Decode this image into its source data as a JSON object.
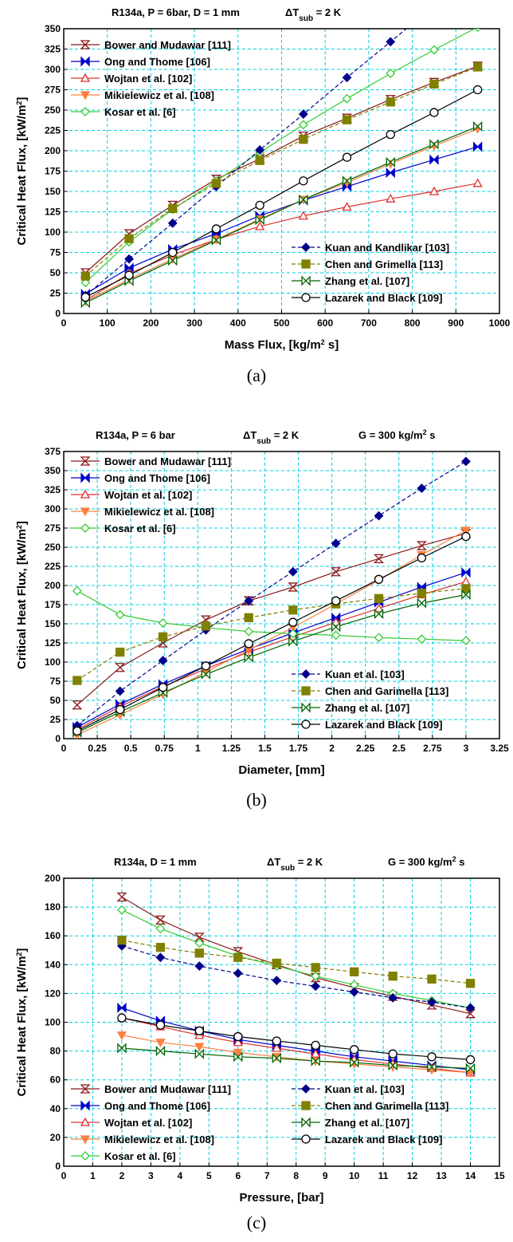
{
  "chart_data": [
    {
      "type": "line",
      "panel_caption": "(a)",
      "header": [
        "R134a, P = 6bar, D = 1 mm",
        "ΔT_sub = 2 K"
      ],
      "xlabel": "Mass Flux, [kg/m² s]",
      "ylabel": "Critical Heat Flux, [kW/m²]",
      "xlim": [
        0,
        1000
      ],
      "ylim": [
        0,
        350
      ],
      "xticks": [
        0,
        100,
        200,
        300,
        400,
        500,
        600,
        700,
        800,
        900,
        1000
      ],
      "yticks": [
        0,
        25,
        50,
        75,
        100,
        125,
        150,
        175,
        200,
        225,
        250,
        275,
        300,
        325,
        350
      ],
      "grid": true,
      "legend": [
        "top-left",
        "bottom-right"
      ],
      "series": [
        {
          "name": "Bower and Mudawar [111]",
          "color": "#8B1A1A",
          "marker": "hourglass",
          "dashed": false,
          "legend_group": 0,
          "x": [
            50,
            150,
            250,
            350,
            450,
            550,
            650,
            750,
            850,
            950
          ],
          "y": [
            50,
            98,
            133,
            165,
            190,
            218,
            240,
            263,
            284,
            304
          ]
        },
        {
          "name": "Ong and Thome [106]",
          "color": "#0000CC",
          "marker": "bowtie",
          "dashed": false,
          "legend_group": 0,
          "x": [
            50,
            150,
            250,
            350,
            450,
            550,
            650,
            750,
            850,
            950
          ],
          "y": [
            24,
            56,
            79,
            98,
            120,
            139,
            156,
            173,
            189,
            205
          ]
        },
        {
          "name": "Wojtan et al. [102]",
          "color": "#E03030",
          "marker": "triangle",
          "dashed": false,
          "legend_group": 0,
          "x": [
            50,
            150,
            250,
            350,
            450,
            550,
            650,
            750,
            850,
            950
          ],
          "y": [
            16,
            49,
            72,
            91,
            107,
            120,
            131,
            141,
            150,
            160
          ]
        },
        {
          "name": "Mikielewicz et al. [108]",
          "color": "#FF8040",
          "marker": "triangle-down",
          "dashed": false,
          "legend_group": 0,
          "x": [
            50,
            150,
            250,
            350,
            450,
            550,
            650,
            750,
            850,
            950
          ],
          "y": [
            15,
            42,
            67,
            91,
            116,
            140,
            161,
            184,
            206,
            227
          ]
        },
        {
          "name": "Kosar et al. [6]",
          "color": "#33CC33",
          "marker": "diamond",
          "dashed": false,
          "legend_group": 0,
          "x": [
            50,
            150,
            250,
            350,
            450,
            550,
            650,
            750,
            850,
            950
          ],
          "y": [
            38,
            88,
            128,
            163,
            198,
            232,
            264,
            295,
            324,
            352
          ]
        },
        {
          "name": "Kuan and Kandlikar [103]",
          "color": "#00008B",
          "marker": "diamond-filled",
          "dashed": true,
          "legend_group": 1,
          "x": [
            50,
            150,
            250,
            350,
            450,
            550,
            650,
            750
          ],
          "y": [
            22,
            67,
            111,
            156,
            201,
            245,
            290,
            334
          ]
        },
        {
          "name": "Chen and Grimella [113]",
          "color": "#808000",
          "marker": "square",
          "dashed": true,
          "legend_group": 1,
          "x": [
            50,
            150,
            250,
            350,
            450,
            550,
            650,
            750,
            850,
            950
          ],
          "y": [
            46,
            92,
            129,
            160,
            188,
            214,
            238,
            260,
            282,
            303
          ]
        },
        {
          "name": "Zhang et al. [107]",
          "color": "#006400",
          "marker": "bowtie-open",
          "dashed": false,
          "legend_group": 1,
          "x": [
            50,
            150,
            250,
            350,
            450,
            550,
            650,
            750,
            850,
            950
          ],
          "y": [
            13,
            40,
            65,
            90,
            115,
            140,
            163,
            186,
            208,
            230
          ]
        },
        {
          "name": "Lazarek and Black [109]",
          "color": "#000000",
          "marker": "circle",
          "dashed": false,
          "legend_group": 1,
          "x": [
            50,
            150,
            250,
            350,
            450,
            550,
            650,
            750,
            850,
            950
          ],
          "y": [
            20,
            47,
            75,
            104,
            133,
            163,
            192,
            220,
            247,
            275
          ]
        }
      ]
    },
    {
      "type": "line",
      "panel_caption": "(b)",
      "header": [
        "R134a, P = 6 bar",
        "ΔT_sub = 2 K",
        "G = 300 kg/m² s"
      ],
      "xlabel": "Diameter, [mm]",
      "ylabel": "Critical Heat Flux, [kW/m²]",
      "xlim": [
        0,
        3.25
      ],
      "ylim": [
        0,
        375
      ],
      "xticks": [
        0,
        0.25,
        0.5,
        0.75,
        1,
        1.25,
        1.5,
        1.75,
        2,
        2.25,
        2.5,
        2.75,
        3,
        3.25
      ],
      "yticks": [
        0,
        25,
        50,
        75,
        100,
        125,
        150,
        175,
        200,
        225,
        250,
        275,
        300,
        325,
        350,
        375
      ],
      "grid": true,
      "legend": [
        "top-left",
        "bottom-right"
      ],
      "series": [
        {
          "name": "Bower and Mudawar [111]",
          "color": "#8B1A1A",
          "marker": "hourglass",
          "dashed": false,
          "legend_group": 0,
          "x": [
            0.1,
            0.42,
            0.74,
            1.06,
            1.38,
            1.71,
            2.03,
            2.35,
            2.67,
            3.0
          ],
          "y": [
            44,
            93,
            125,
            155,
            180,
            198,
            218,
            235,
            252,
            268
          ]
        },
        {
          "name": "Ong and Thome [106]",
          "color": "#0000CC",
          "marker": "bowtie",
          "dashed": false,
          "legend_group": 0,
          "x": [
            0.1,
            0.42,
            0.74,
            1.06,
            1.38,
            1.71,
            2.03,
            2.35,
            2.67,
            3.0
          ],
          "y": [
            15,
            45,
            71,
            95,
            117,
            138,
            158,
            178,
            198,
            217
          ]
        },
        {
          "name": "Wojtan et al. [102]",
          "color": "#E03030",
          "marker": "triangle",
          "dashed": false,
          "legend_group": 0,
          "x": [
            0.1,
            0.42,
            0.74,
            1.06,
            1.38,
            1.71,
            2.03,
            2.35,
            2.67,
            3.0
          ],
          "y": [
            12,
            42,
            68,
            91,
            113,
            133,
            152,
            170,
            188,
            205
          ]
        },
        {
          "name": "Mikielewicz et al. [108]",
          "color": "#FF8040",
          "marker": "triangle-down",
          "dashed": false,
          "legend_group": 0,
          "x": [
            0.1,
            0.42,
            0.74,
            1.06,
            1.38,
            1.71,
            2.03,
            2.35,
            2.67,
            3.0
          ],
          "y": [
            5,
            31,
            58,
            87,
            116,
            145,
            176,
            207,
            240,
            272
          ]
        },
        {
          "name": "Kosar et al. [6]",
          "color": "#33CC33",
          "marker": "diamond",
          "dashed": false,
          "legend_group": 0,
          "x": [
            0.1,
            0.42,
            0.74,
            1.06,
            1.38,
            1.71,
            2.03,
            2.35,
            2.67,
            3.0
          ],
          "y": [
            193,
            162,
            151,
            145,
            140,
            137,
            135,
            132,
            130,
            128
          ]
        },
        {
          "name": "Kuan et al. [103]",
          "color": "#00008B",
          "marker": "diamond-filled",
          "dashed": true,
          "legend_group": 1,
          "x": [
            0.1,
            0.42,
            0.74,
            1.06,
            1.38,
            1.71,
            2.03,
            2.35,
            2.67,
            3.0
          ],
          "y": [
            17,
            62,
            102,
            142,
            180,
            218,
            255,
            291,
            327,
            362
          ]
        },
        {
          "name": "Chen and Garimella [113]",
          "color": "#808000",
          "marker": "square",
          "dashed": true,
          "legend_group": 1,
          "x": [
            0.1,
            0.42,
            0.74,
            1.06,
            1.38,
            1.71,
            2.03,
            2.35,
            2.67,
            3.0
          ],
          "y": [
            76,
            113,
            133,
            147,
            158,
            168,
            176,
            183,
            190,
            196
          ]
        },
        {
          "name": "Zhang et al. [107]",
          "color": "#006400",
          "marker": "bowtie-open",
          "dashed": false,
          "legend_group": 1,
          "x": [
            0.1,
            0.42,
            0.74,
            1.06,
            1.38,
            1.71,
            2.03,
            2.35,
            2.67,
            3.0
          ],
          "y": [
            8,
            35,
            60,
            84,
            106,
            127,
            146,
            163,
            177,
            188
          ]
        },
        {
          "name": "Lazarek and Black [109]",
          "color": "#000000",
          "marker": "circle",
          "dashed": false,
          "legend_group": 1,
          "x": [
            0.1,
            0.42,
            0.74,
            1.06,
            1.38,
            1.71,
            2.03,
            2.35,
            2.67,
            3.0
          ],
          "y": [
            10,
            38,
            67,
            95,
            124,
            152,
            180,
            208,
            236,
            264
          ]
        }
      ]
    },
    {
      "type": "line",
      "panel_caption": "(c)",
      "header": [
        "R134a, D = 1 mm",
        "ΔT_sub = 2 K",
        "G = 300 kg/m² s"
      ],
      "xlabel": "Pressure, [bar]",
      "ylabel": "Critical Heat Flux, [kW/m²]",
      "xlim": [
        0,
        15
      ],
      "ylim": [
        0,
        200
      ],
      "xticks": [
        0,
        1,
        2,
        3,
        4,
        5,
        6,
        7,
        8,
        9,
        10,
        11,
        12,
        13,
        14,
        15
      ],
      "yticks": [
        0,
        20,
        40,
        60,
        80,
        100,
        120,
        140,
        160,
        180,
        200
      ],
      "grid": true,
      "legend": [
        "bottom-left",
        "bottom-right"
      ],
      "series": [
        {
          "name": "Bower and Mudawar [111]",
          "color": "#8B1A1A",
          "marker": "hourglass",
          "dashed": false,
          "legend_group": 0,
          "x": [
            2,
            3.33,
            4.67,
            6,
            7.33,
            8.67,
            10,
            11.33,
            12.67,
            14
          ],
          "y": [
            187,
            171,
            159,
            149,
            140,
            131,
            124,
            118,
            112,
            106
          ]
        },
        {
          "name": "Ong and Thome [106]",
          "color": "#0000CC",
          "marker": "bowtie",
          "dashed": false,
          "legend_group": 0,
          "x": [
            2,
            3.33,
            4.67,
            6,
            7.33,
            8.67,
            10,
            11.33,
            12.67,
            14
          ],
          "y": [
            110,
            101,
            94,
            88,
            84,
            80,
            76,
            73,
            70,
            67
          ]
        },
        {
          "name": "Wojtan et al. [102]",
          "color": "#E03030",
          "marker": "triangle",
          "dashed": false,
          "legend_group": 0,
          "x": [
            2,
            3.33,
            4.67,
            6,
            7.33,
            8.67,
            10,
            11.33,
            12.67,
            14
          ],
          "y": [
            103,
            97,
            91,
            86,
            82,
            78,
            74,
            71,
            68,
            65
          ]
        },
        {
          "name": "Mikielewicz et al. [108]",
          "color": "#FF8040",
          "marker": "triangle-down",
          "dashed": false,
          "legend_group": 0,
          "x": [
            2,
            3.33,
            4.67,
            6,
            7.33,
            8.67,
            10,
            11.33,
            12.67,
            14
          ],
          "y": [
            91,
            86,
            83,
            79,
            76,
            73,
            71,
            69,
            67,
            65
          ]
        },
        {
          "name": "Kosar et al. [6]",
          "color": "#33CC33",
          "marker": "diamond",
          "dashed": false,
          "legend_group": 0,
          "x": [
            2,
            3.33,
            4.67,
            6,
            7.33,
            8.67,
            10,
            11.33,
            12.67,
            14
          ],
          "y": [
            178,
            165,
            155,
            146,
            139,
            132,
            126,
            120,
            115,
            110
          ]
        },
        {
          "name": "Kuan et al. [103]",
          "color": "#00008B",
          "marker": "diamond-filled",
          "dashed": true,
          "legend_group": 1,
          "x": [
            2,
            3.33,
            4.67,
            6,
            7.33,
            8.67,
            10,
            11.33,
            12.67,
            14
          ],
          "y": [
            153,
            145,
            139,
            134,
            129,
            125,
            121,
            117,
            114,
            110
          ]
        },
        {
          "name": "Chen and Garimella [113]",
          "color": "#808000",
          "marker": "square",
          "dashed": true,
          "legend_group": 1,
          "x": [
            2,
            3.33,
            4.67,
            6,
            7.33,
            8.67,
            10,
            11.33,
            12.67,
            14
          ],
          "y": [
            157,
            152,
            148,
            145,
            141,
            138,
            135,
            132,
            130,
            127
          ]
        },
        {
          "name": "Zhang et al. [107]",
          "color": "#006400",
          "marker": "bowtie-open",
          "dashed": false,
          "legend_group": 1,
          "x": [
            2,
            3.33,
            4.67,
            6,
            7.33,
            8.67,
            10,
            11.33,
            12.67,
            14
          ],
          "y": [
            82,
            80,
            78,
            76,
            75,
            73,
            72,
            70,
            69,
            68
          ]
        },
        {
          "name": "Lazarek and Black [109]",
          "color": "#000000",
          "marker": "circle",
          "dashed": false,
          "legend_group": 1,
          "x": [
            2,
            3.33,
            4.67,
            6,
            7.33,
            8.67,
            10,
            11.33,
            12.67,
            14
          ],
          "y": [
            103,
            98,
            94,
            90,
            87,
            84,
            81,
            78,
            76,
            74
          ]
        }
      ]
    }
  ]
}
